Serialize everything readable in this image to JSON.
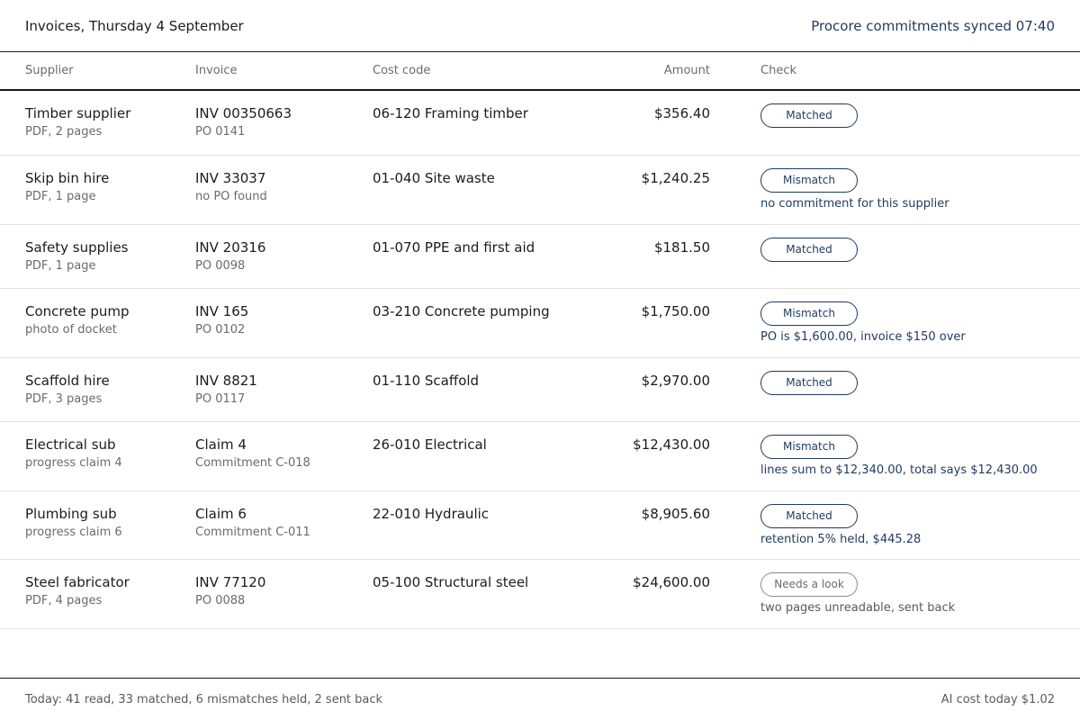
{
  "header": {
    "title": "Invoices, Thursday 4 September",
    "sync_status": "Procore commitments synced 07:40"
  },
  "columns": {
    "supplier": "Supplier",
    "invoice": "Invoice",
    "cost_code": "Cost code",
    "amount": "Amount",
    "check": "Check"
  },
  "rows": [
    {
      "supplier": "Timber supplier",
      "source": "PDF, 2 pages",
      "invoice": "INV 00350663",
      "ref": "PO 0141",
      "cost_code": "06-120 Framing timber",
      "amount": "$356.40",
      "status": "Matched",
      "note": ""
    },
    {
      "supplier": "Skip bin hire",
      "source": "PDF, 1 page",
      "invoice": "INV 33037",
      "ref": "no PO found",
      "cost_code": "01-040 Site waste",
      "amount": "$1,240.25",
      "status": "Mismatch",
      "note": "no commitment for this supplier"
    },
    {
      "supplier": "Safety supplies",
      "source": "PDF, 1 page",
      "invoice": "INV 20316",
      "ref": "PO 0098",
      "cost_code": "01-070 PPE and first aid",
      "amount": "$181.50",
      "status": "Matched",
      "note": ""
    },
    {
      "supplier": "Concrete pump",
      "source": "photo of docket",
      "invoice": "INV 165",
      "ref": "PO 0102",
      "cost_code": "03-210 Concrete pumping",
      "amount": "$1,750.00",
      "status": "Mismatch",
      "note": "PO is $1,600.00, invoice $150 over"
    },
    {
      "supplier": "Scaffold hire",
      "source": "PDF, 3 pages",
      "invoice": "INV 8821",
      "ref": "PO 0117",
      "cost_code": "01-110 Scaffold",
      "amount": "$2,970.00",
      "status": "Matched",
      "note": ""
    },
    {
      "supplier": "Electrical sub",
      "source": "progress claim 4",
      "invoice": "Claim 4",
      "ref": "Commitment C-018",
      "cost_code": "26-010 Electrical",
      "amount": "$12,430.00",
      "status": "Mismatch",
      "note": "lines sum to $12,340.00, total says $12,430.00"
    },
    {
      "supplier": "Plumbing sub",
      "source": "progress claim 6",
      "invoice": "Claim 6",
      "ref": "Commitment C-011",
      "cost_code": "22-010 Hydraulic",
      "amount": "$8,905.60",
      "status": "Matched",
      "note": "retention 5% held, $445.28"
    },
    {
      "supplier": "Steel fabricator",
      "source": "PDF, 4 pages",
      "invoice": "INV 77120",
      "ref": "PO 0088",
      "cost_code": "05-100 Structural steel",
      "amount": "$24,600.00",
      "status": "Needs a look",
      "note": "two pages unreadable, sent back"
    }
  ],
  "footer": {
    "summary": "Today: 41 read, 33 matched, 6 mismatches held, 2 sent back",
    "ai_cost": "AI cost today $1.02"
  },
  "colors": {
    "accent": "#1f3a5f",
    "muted": "#6b6b6b",
    "rule": "#1a1a1a"
  }
}
